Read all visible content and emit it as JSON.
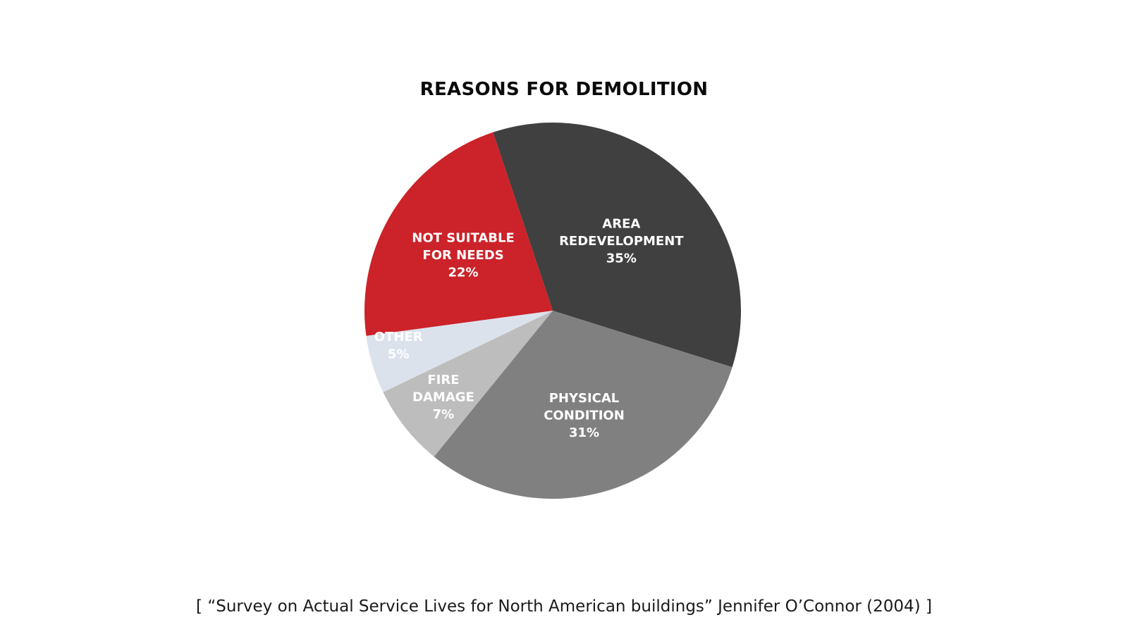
{
  "chart_data": {
    "type": "pie",
    "title": "REASONS FOR DEMOLITION",
    "slices": [
      {
        "label_lines": [
          "AREA",
          "REDEVELOPMENT"
        ],
        "value_label": "35%",
        "value": 35,
        "color": "#404040"
      },
      {
        "label_lines": [
          "PHYSICAL",
          "CONDITION"
        ],
        "value_label": "31%",
        "value": 31,
        "color": "#808080"
      },
      {
        "label_lines": [
          "FIRE",
          "DAMAGE"
        ],
        "value_label": "7%",
        "value": 7,
        "color": "#bdbdbd"
      },
      {
        "label_lines": [
          "OTHER"
        ],
        "value_label": "5%",
        "value": 5,
        "color": "#dbe2ec"
      },
      {
        "label_lines": [
          "NOT SUITABLE",
          "FOR NEEDS"
        ],
        "value_label": "22%",
        "value": 22,
        "color": "#cc2229"
      }
    ],
    "source": "[ “Survey on Actual Service Lives for North American buildings” Jennifer O’Connor (2004) ]"
  }
}
